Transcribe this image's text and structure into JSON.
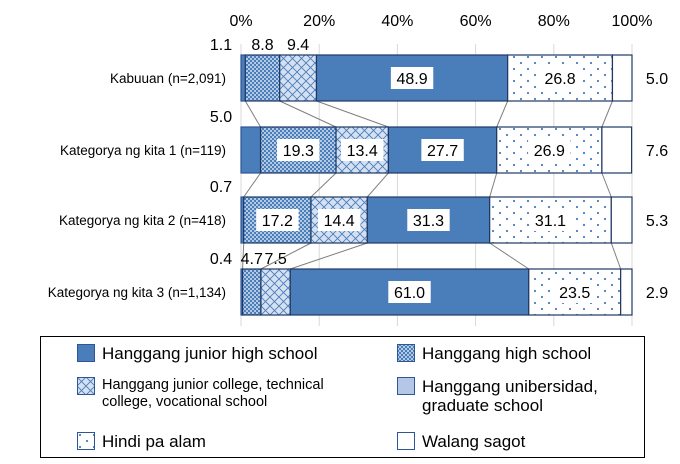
{
  "chart_data": {
    "type": "bar",
    "orientation": "horizontal",
    "stacked": true,
    "percent": true,
    "xlim": [
      0,
      100
    ],
    "xticks": [
      "0%",
      "20%",
      "40%",
      "60%",
      "80%",
      "100%"
    ],
    "grid": true,
    "legend_position": "bottom",
    "categories": [
      "Kabuuan (n=2,091)",
      "Kategorya ng kita 1 (n=119)",
      "Kategorya ng kita 2 (n=418)",
      "Kategorya ng kita 3 (n=1,134)"
    ],
    "series": [
      {
        "name": "Hanggang junior high school",
        "values": [
          1.1,
          5.0,
          0.7,
          0.4
        ],
        "labels": [
          "1.1",
          "5.0",
          "0.7",
          "0.4"
        ],
        "color": "#4a7ebb",
        "pattern": "solid"
      },
      {
        "name": "Hanggang high school",
        "values": [
          8.8,
          19.3,
          17.2,
          4.7
        ],
        "labels": [
          "8.8",
          "19.3",
          "17.2",
          "4.7"
        ],
        "color": "#4a7ebb",
        "pattern": "dots-dense"
      },
      {
        "name": "Hanggang junior college, technical college, vocational school",
        "values": [
          9.4,
          13.4,
          14.4,
          7.5
        ],
        "labels": [
          "9.4",
          "13.4",
          "14.4",
          "7.5"
        ],
        "color": "#9cb7dd",
        "pattern": "crosshatch"
      },
      {
        "name": "Hanggang unibersidad, graduate school",
        "values": [
          48.9,
          27.7,
          31.3,
          61.0
        ],
        "labels": [
          "48.9",
          "27.7",
          "31.3",
          "61.0"
        ],
        "color": "#b4c7e7",
        "pattern": "solid"
      },
      {
        "name": "Hindi pa alam",
        "values": [
          26.8,
          26.9,
          31.1,
          23.5
        ],
        "labels": [
          "26.8",
          "26.9",
          "31.1",
          "23.5"
        ],
        "color": "#4a7ebb",
        "pattern": "dots-sparse"
      },
      {
        "name": "Walang sagot",
        "values": [
          5.0,
          7.6,
          5.3,
          2.9
        ],
        "labels": [
          "5.0",
          "7.6",
          "5.3",
          "2.9"
        ],
        "color": "#ffffff",
        "pattern": "none"
      }
    ]
  },
  "legend": {
    "items": [
      {
        "label": "Hanggang junior high school",
        "pattern": "solid-dark"
      },
      {
        "label": "Hanggang high school",
        "pattern": "dots-dense"
      },
      {
        "label": "Hanggang junior college, technical\ncollege, vocational school",
        "pattern": "crosshatch"
      },
      {
        "label": "Hanggang unibersidad,\ngraduate school",
        "pattern": "solid-light"
      },
      {
        "label": "Hindi pa alam",
        "pattern": "dots-sparse"
      },
      {
        "label": "Walang sagot",
        "pattern": "none"
      }
    ]
  }
}
